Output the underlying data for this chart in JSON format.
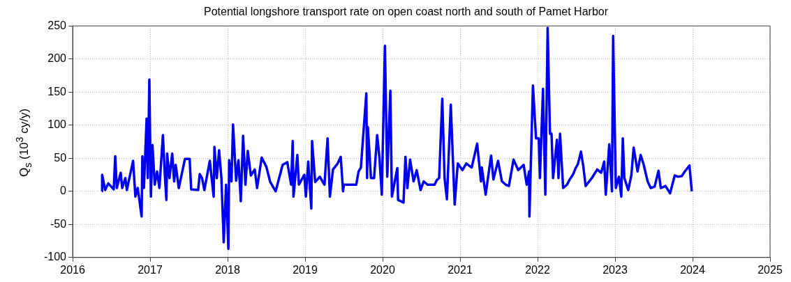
{
  "chart_data": {
    "type": "line",
    "title": "Potential longshore transport rate on open coast north and south of Pamet Harbor",
    "ylabel": "Q$_{s}$ (10$^{3}$ cy/y)",
    "xlim": [
      2016,
      2025
    ],
    "xticks": [
      2016,
      2017,
      2018,
      2019,
      2020,
      2021,
      2022,
      2023,
      2024,
      2025
    ],
    "ylim": [
      -100,
      250
    ],
    "yticks": [
      -100,
      -50,
      0,
      50,
      100,
      150,
      200,
      250
    ],
    "grid": true,
    "legend": false,
    "series": [
      {
        "color": "#0000f0",
        "x": [
          2016.38,
          2016.381,
          2016.42,
          2016.46,
          2016.53,
          2016.55,
          2016.57,
          2016.62,
          2016.64,
          2016.68,
          2016.7,
          2016.78,
          2016.81,
          2016.84,
          2016.89,
          2016.9,
          2016.92,
          2016.955,
          2016.97,
          2016.99,
          2017.01,
          2017.03,
          2017.06,
          2017.09,
          2017.12,
          2017.165,
          2017.19,
          2017.21,
          2017.22,
          2017.25,
          2017.285,
          2017.31,
          2017.33,
          2017.37,
          2017.45,
          2017.51,
          2017.53,
          2017.62,
          2017.64,
          2017.67,
          2017.7,
          2017.77,
          2017.82,
          2017.83,
          2017.86,
          2017.89,
          2017.92,
          2017.95,
          2017.98,
          2018.01,
          2018.02,
          2018.05,
          2018.07,
          2018.11,
          2018.14,
          2018.17,
          2018.2,
          2018.23,
          2018.26,
          2018.3,
          2018.35,
          2018.38,
          2018.44,
          2018.5,
          2018.55,
          2018.62,
          2018.71,
          2018.77,
          2018.82,
          2018.84,
          2018.85,
          2018.9,
          2018.92,
          2018.99,
          2019.01,
          2019.04,
          2019.08,
          2019.09,
          2019.13,
          2019.19,
          2019.25,
          2019.29,
          2019.32,
          2019.36,
          2019.42,
          2019.46,
          2019.49,
          2019.5,
          2019.66,
          2019.69,
          2019.72,
          2019.79,
          2019.8,
          2019.81,
          2019.85,
          2019.89,
          2019.93,
          2019.96,
          2019.99,
          2020.03,
          2020.06,
          2020.1,
          2020.12,
          2020.19,
          2020.2,
          2020.27,
          2020.295,
          2020.32,
          2020.355,
          2020.4,
          2020.44,
          2020.49,
          2020.53,
          2020.58,
          2020.67,
          2020.7,
          2020.73,
          2020.77,
          2020.8,
          2020.83,
          2020.88,
          2020.93,
          2020.97,
          2021.03,
          2021.08,
          2021.15,
          2021.22,
          2021.27,
          2021.28,
          2021.33,
          2021.4,
          2021.43,
          2021.49,
          2021.54,
          2021.59,
          2021.63,
          2021.69,
          2021.75,
          2021.82,
          2021.86,
          2021.89,
          2021.895,
          2021.94,
          2021.98,
          2022.015,
          2022.03,
          2022.07,
          2022.1,
          2022.13,
          2022.16,
          2022.18,
          2022.2,
          2022.25,
          2022.27,
          2022.29,
          2022.33,
          2022.38,
          2022.41,
          2022.46,
          2022.49,
          2022.52,
          2022.56,
          2022.59,
          2022.62,
          2022.7,
          2022.77,
          2022.82,
          2022.86,
          2022.88,
          2022.925,
          2022.96,
          2022.975,
          2023.01,
          2023.05,
          2023.08,
          2023.1,
          2023.12,
          2023.17,
          2023.21,
          2023.24,
          2023.29,
          2023.33,
          2023.37,
          2023.42,
          2023.46,
          2023.51,
          2023.56,
          2023.59,
          2023.65,
          2023.71,
          2023.77,
          2023.81,
          2023.86,
          2023.9,
          2023.96,
          2023.99
        ],
        "values": [
          0,
          25,
          2,
          12,
          3,
          53,
          5,
          28,
          5,
          20,
          2,
          46,
          -8,
          5,
          -38,
          53,
          5,
          110,
          20,
          169,
          -8,
          70,
          10,
          30,
          5,
          85,
          25,
          -13,
          57,
          20,
          57,
          15,
          40,
          5,
          49,
          49,
          3,
          2,
          26,
          20,
          2,
          46,
          -8,
          67,
          20,
          62,
          20,
          -77,
          10,
          -87,
          47,
          15,
          101,
          16,
          47,
          -15,
          84,
          10,
          61,
          24,
          33,
          5,
          51,
          37,
          14,
          0,
          40,
          44,
          10,
          76,
          -8,
          55,
          10,
          25,
          -8,
          45,
          -26,
          76,
          14,
          22,
          10,
          80,
          -8,
          33,
          42,
          52,
          0,
          10,
          10,
          30,
          36,
          148,
          20,
          97,
          20,
          20,
          85,
          50,
          -5,
          220,
          22,
          152,
          -8,
          35,
          -13,
          -17,
          52,
          5,
          48,
          15,
          32,
          2,
          15,
          10,
          10,
          17,
          20,
          140,
          20,
          -12,
          131,
          -20,
          42,
          32,
          42,
          36,
          72,
          15,
          36,
          -5,
          54,
          18,
          46,
          15,
          10,
          8,
          48,
          32,
          40,
          10,
          30,
          -38,
          160,
          80,
          80,
          20,
          155,
          -5,
          247,
          87,
          87,
          20,
          78,
          20,
          87,
          5,
          10,
          17,
          26,
          35,
          41,
          60,
          38,
          8,
          20,
          33,
          28,
          45,
          -5,
          71,
          0,
          235,
          5,
          22,
          -8,
          80,
          20,
          2,
          24,
          66,
          30,
          55,
          40,
          15,
          5,
          7,
          31,
          5,
          8,
          -3,
          24,
          22,
          23,
          30,
          39,
          0
        ]
      }
    ]
  }
}
